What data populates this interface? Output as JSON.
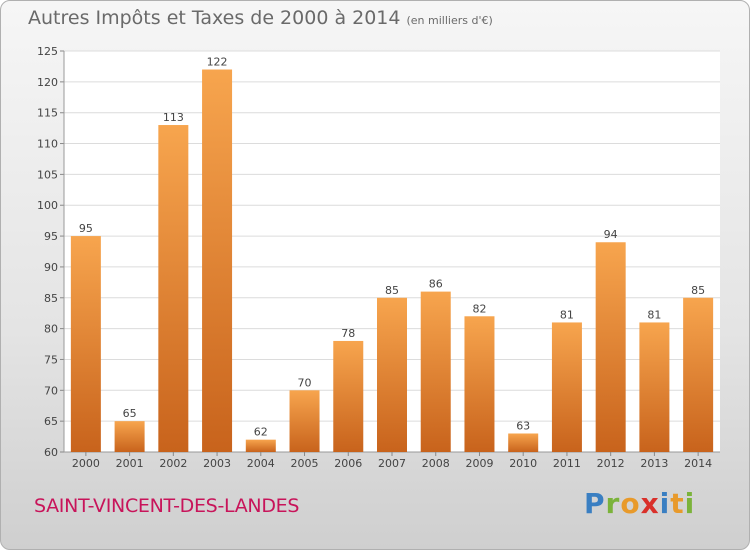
{
  "chart_data": {
    "type": "bar",
    "title": "Autres Impôts et Taxes de 2000 à 2014",
    "unit_note": "(en milliers d'€)",
    "categories": [
      "2000",
      "2001",
      "2002",
      "2003",
      "2004",
      "2005",
      "2006",
      "2007",
      "2008",
      "2009",
      "2010",
      "2011",
      "2012",
      "2013",
      "2014"
    ],
    "values": [
      95,
      65,
      113,
      122,
      62,
      70,
      78,
      85,
      86,
      82,
      63,
      81,
      94,
      81,
      85
    ],
    "ylim": [
      60,
      125
    ],
    "yticks": [
      60,
      65,
      70,
      75,
      80,
      85,
      90,
      95,
      100,
      105,
      110,
      115,
      120,
      125
    ],
    "grid": true,
    "bar_color_top": "#f7a54e",
    "bar_color_bottom": "#c8631c"
  },
  "footer": {
    "city": "SAINT-VINCENT-DES-LANDES",
    "logo": [
      "P",
      "r",
      "o",
      "x",
      "i",
      "t",
      "i"
    ],
    "logo_colors": [
      "#3a7fc2",
      "#7bb33a",
      "#e89a2b",
      "#d9302a",
      "#3a7fc2",
      "#e89a2b",
      "#7bb33a"
    ]
  }
}
